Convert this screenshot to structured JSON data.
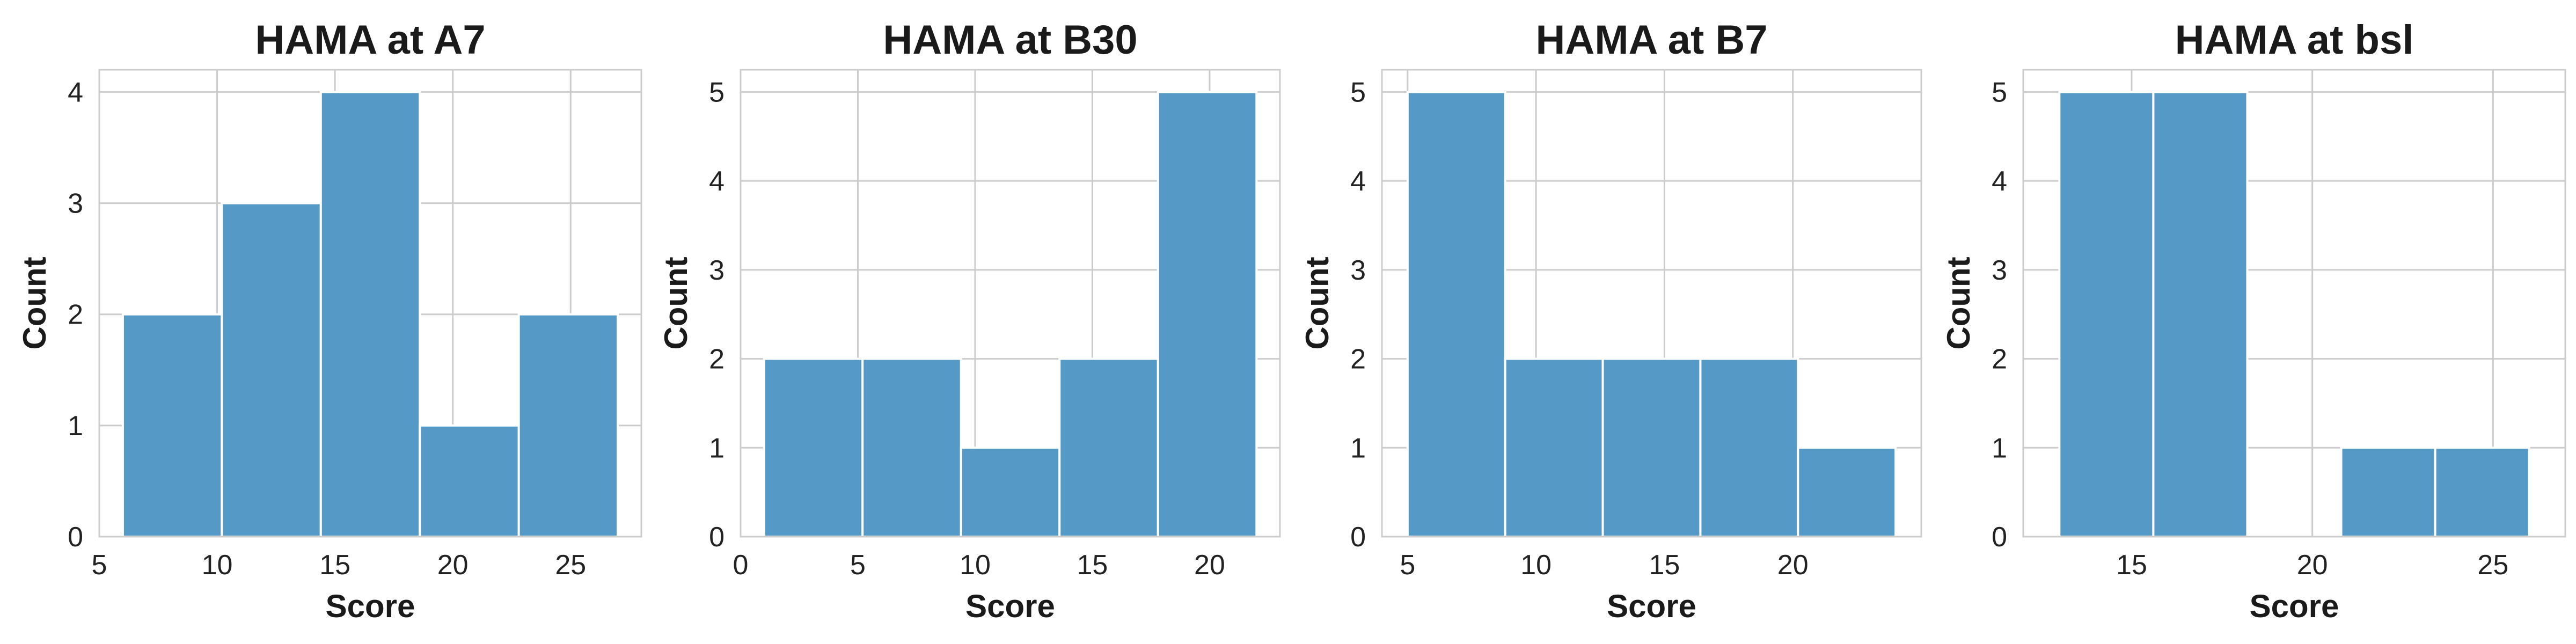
{
  "colors": {
    "bar": "#5599c7",
    "grid": "#cccccc",
    "text": "#1a1a1a"
  },
  "chart_data": [
    {
      "type": "bar",
      "title": "HAMA at A7",
      "xlabel": "Score",
      "ylabel": "Count",
      "grid": true,
      "xlim": [
        5,
        28
      ],
      "ylim": [
        0,
        4.2
      ],
      "xticks": [
        5,
        10,
        15,
        20,
        25
      ],
      "yticks": [
        0,
        1,
        2,
        3,
        4
      ],
      "bins": [
        {
          "start": 6.0,
          "end": 10.2,
          "count": 2
        },
        {
          "start": 10.2,
          "end": 14.4,
          "count": 3
        },
        {
          "start": 14.4,
          "end": 18.6,
          "count": 4
        },
        {
          "start": 18.6,
          "end": 22.8,
          "count": 1
        },
        {
          "start": 22.8,
          "end": 27.0,
          "count": 2
        }
      ]
    },
    {
      "type": "bar",
      "title": "HAMA at B30",
      "xlabel": "Score",
      "ylabel": "Count",
      "grid": true,
      "xlim": [
        0,
        23
      ],
      "ylim": [
        0,
        5.25
      ],
      "xticks": [
        0,
        5,
        10,
        15,
        20
      ],
      "yticks": [
        0,
        1,
        2,
        3,
        4,
        5
      ],
      "bins": [
        {
          "start": 1.0,
          "end": 5.2,
          "count": 2
        },
        {
          "start": 5.2,
          "end": 9.4,
          "count": 2
        },
        {
          "start": 9.4,
          "end": 13.6,
          "count": 1
        },
        {
          "start": 13.6,
          "end": 17.8,
          "count": 2
        },
        {
          "start": 17.8,
          "end": 22.0,
          "count": 5
        }
      ]
    },
    {
      "type": "bar",
      "title": "HAMA at B7",
      "xlabel": "Score",
      "ylabel": "Count",
      "grid": true,
      "xlim": [
        4,
        25
      ],
      "ylim": [
        0,
        5.25
      ],
      "xticks": [
        5,
        10,
        15,
        20
      ],
      "yticks": [
        0,
        1,
        2,
        3,
        4,
        5
      ],
      "bins": [
        {
          "start": 5.0,
          "end": 8.8,
          "count": 5
        },
        {
          "start": 8.8,
          "end": 12.6,
          "count": 2
        },
        {
          "start": 12.6,
          "end": 16.4,
          "count": 2
        },
        {
          "start": 16.4,
          "end": 20.2,
          "count": 2
        },
        {
          "start": 20.2,
          "end": 24.0,
          "count": 1
        }
      ]
    },
    {
      "type": "bar",
      "title": "HAMA at bsl",
      "xlabel": "Score",
      "ylabel": "Count",
      "grid": true,
      "xlim": [
        12,
        27
      ],
      "ylim": [
        0,
        5.25
      ],
      "xticks": [
        15,
        20,
        25
      ],
      "yticks": [
        0,
        1,
        2,
        3,
        4,
        5
      ],
      "bins": [
        {
          "start": 13.0,
          "end": 15.6,
          "count": 5
        },
        {
          "start": 15.6,
          "end": 18.2,
          "count": 5
        },
        {
          "start": 18.2,
          "end": 20.8,
          "count": 0
        },
        {
          "start": 20.8,
          "end": 23.4,
          "count": 1
        },
        {
          "start": 23.4,
          "end": 26.0,
          "count": 1
        }
      ]
    }
  ]
}
